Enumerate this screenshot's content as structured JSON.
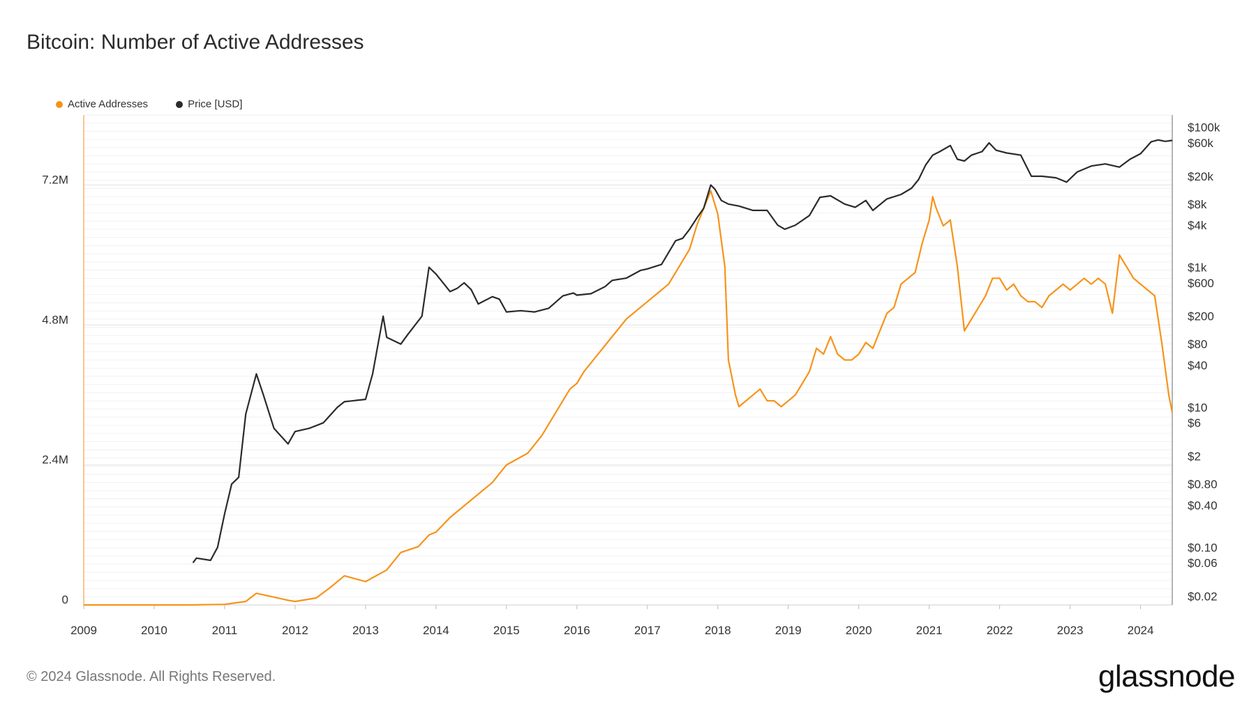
{
  "title": "Bitcoin: Number of Active Addresses",
  "legend": [
    {
      "label": "Active Addresses",
      "color": "#f7931a"
    },
    {
      "label": "Price [USD]",
      "color": "#2b2b2b"
    }
  ],
  "footer": "© 2024 Glassnode. All Rights Reserved.",
  "logo": "glassnode",
  "chart_data": {
    "type": "line",
    "title": "Bitcoin: Number of Active Addresses",
    "x_ticks": [
      "2009",
      "2010",
      "2011",
      "2012",
      "2013",
      "2014",
      "2015",
      "2016",
      "2017",
      "2018",
      "2019",
      "2020",
      "2021",
      "2022",
      "2023",
      "2024"
    ],
    "x_range": [
      2009.0,
      2024.45
    ],
    "left_axis": {
      "ticks": [
        {
          "v": 0,
          "label": "0"
        },
        {
          "v": 2400000,
          "label": "2.4M"
        },
        {
          "v": 4800000,
          "label": "4.8M"
        },
        {
          "v": 7200000,
          "label": "7.2M"
        }
      ],
      "ylim": [
        0,
        8400000
      ]
    },
    "right_axis": {
      "scale": "log",
      "ylim": [
        0.015,
        150000
      ],
      "ticks": [
        {
          "v": 0.02,
          "label": "$0.02"
        },
        {
          "v": 0.06,
          "label": "$0.06"
        },
        {
          "v": 0.1,
          "label": "$0.10"
        },
        {
          "v": 0.4,
          "label": "$0.40"
        },
        {
          "v": 0.8,
          "label": "$0.80"
        },
        {
          "v": 2,
          "label": "$2"
        },
        {
          "v": 6,
          "label": "$6"
        },
        {
          "v": 10,
          "label": "$10"
        },
        {
          "v": 40,
          "label": "$40"
        },
        {
          "v": 80,
          "label": "$80"
        },
        {
          "v": 200,
          "label": "$200"
        },
        {
          "v": 600,
          "label": "$600"
        },
        {
          "v": 1000,
          "label": "$1k"
        },
        {
          "v": 4000,
          "label": "$4k"
        },
        {
          "v": 8000,
          "label": "$8k"
        },
        {
          "v": 20000,
          "label": "$20k"
        },
        {
          "v": 60000,
          "label": "$60k"
        },
        {
          "v": 100000,
          "label": "$100k"
        }
      ]
    },
    "grid": true,
    "legend_position": "top-left",
    "series": [
      {
        "name": "Active Addresses",
        "axis": "left",
        "color": "#f7931a",
        "x": [
          2009.0,
          2010.5,
          2011.0,
          2011.3,
          2011.45,
          2011.6,
          2011.9,
          2012.0,
          2012.3,
          2012.5,
          2012.7,
          2013.0,
          2013.3,
          2013.5,
          2013.75,
          2013.9,
          2014.0,
          2014.2,
          2014.5,
          2014.8,
          2015.0,
          2015.3,
          2015.5,
          2015.7,
          2015.9,
          2016.0,
          2016.1,
          2016.3,
          2016.5,
          2016.7,
          2016.9,
          2017.0,
          2017.1,
          2017.2,
          2017.3,
          2017.4,
          2017.5,
          2017.6,
          2017.7,
          2017.8,
          2017.9,
          2017.95,
          2018.0,
          2018.1,
          2018.15,
          2018.25,
          2018.3,
          2018.4,
          2018.5,
          2018.6,
          2018.7,
          2018.8,
          2018.9,
          2019.0,
          2019.1,
          2019.2,
          2019.3,
          2019.4,
          2019.5,
          2019.6,
          2019.7,
          2019.8,
          2019.9,
          2020.0,
          2020.1,
          2020.2,
          2020.3,
          2020.4,
          2020.5,
          2020.6,
          2020.7,
          2020.8,
          2020.9,
          2021.0,
          2021.05,
          2021.1,
          2021.2,
          2021.3,
          2021.4,
          2021.5,
          2021.6,
          2021.7,
          2021.8,
          2021.9,
          2022.0,
          2022.1,
          2022.2,
          2022.3,
          2022.4,
          2022.5,
          2022.6,
          2022.7,
          2022.8,
          2022.9,
          2023.0,
          2023.1,
          2023.2,
          2023.3,
          2023.4,
          2023.5,
          2023.6,
          2023.7,
          2023.8,
          2023.9,
          2024.0,
          2024.1,
          2024.2,
          2024.3,
          2024.4,
          2024.45
        ],
        "values": [
          0,
          0,
          10000,
          60000,
          200000,
          160000,
          80000,
          60000,
          120000,
          300000,
          500000,
          400000,
          600000,
          900000,
          1000000,
          1200000,
          1250000,
          1500000,
          1800000,
          2100000,
          2400000,
          2600000,
          2900000,
          3300000,
          3700000,
          3800000,
          4000000,
          4300000,
          4600000,
          4900000,
          5100000,
          5200000,
          5300000,
          5400000,
          5500000,
          5700000,
          5900000,
          6100000,
          6500000,
          6800000,
          7100000,
          6900000,
          6700000,
          5800000,
          4200000,
          3600000,
          3400000,
          3500000,
          3600000,
          3700000,
          3500000,
          3500000,
          3400000,
          3500000,
          3600000,
          3800000,
          4000000,
          4400000,
          4300000,
          4600000,
          4300000,
          4200000,
          4200000,
          4300000,
          4500000,
          4400000,
          4700000,
          5000000,
          5100000,
          5500000,
          5600000,
          5700000,
          6200000,
          6600000,
          7000000,
          6800000,
          6500000,
          6600000,
          5800000,
          4700000,
          4900000,
          5100000,
          5300000,
          5600000,
          5600000,
          5400000,
          5500000,
          5300000,
          5200000,
          5200000,
          5100000,
          5300000,
          5400000,
          5500000,
          5400000,
          5500000,
          5600000,
          5500000,
          5600000,
          5500000,
          5000000,
          6000000,
          5800000,
          5600000,
          5500000,
          5400000,
          5300000,
          4500000,
          3600000,
          3300000
        ]
      },
      {
        "name": "Price [USD]",
        "axis": "right",
        "color": "#2b2b2b",
        "x": [
          2010.55,
          2010.6,
          2010.8,
          2010.9,
          2011.0,
          2011.1,
          2011.2,
          2011.3,
          2011.45,
          2011.55,
          2011.7,
          2011.9,
          2012.0,
          2012.2,
          2012.4,
          2012.6,
          2012.7,
          2013.0,
          2013.1,
          2013.25,
          2013.3,
          2013.5,
          2013.6,
          2013.8,
          2013.9,
          2014.0,
          2014.1,
          2014.2,
          2014.3,
          2014.4,
          2014.5,
          2014.6,
          2014.8,
          2014.9,
          2015.0,
          2015.2,
          2015.4,
          2015.6,
          2015.8,
          2015.95,
          2016.0,
          2016.2,
          2016.4,
          2016.5,
          2016.7,
          2016.9,
          2017.0,
          2017.2,
          2017.4,
          2017.5,
          2017.6,
          2017.7,
          2017.8,
          2017.9,
          2017.96,
          2018.05,
          2018.15,
          2018.3,
          2018.5,
          2018.7,
          2018.85,
          2018.95,
          2019.1,
          2019.3,
          2019.45,
          2019.6,
          2019.8,
          2019.95,
          2020.1,
          2020.2,
          2020.4,
          2020.6,
          2020.75,
          2020.85,
          2020.95,
          2021.05,
          2021.15,
          2021.3,
          2021.4,
          2021.5,
          2021.6,
          2021.75,
          2021.85,
          2021.95,
          2022.1,
          2022.3,
          2022.45,
          2022.6,
          2022.8,
          2022.95,
          2023.1,
          2023.3,
          2023.5,
          2023.7,
          2023.85,
          2024.0,
          2024.15,
          2024.25,
          2024.35,
          2024.45
        ],
        "values": [
          0.06,
          0.07,
          0.065,
          0.1,
          0.3,
          0.8,
          1.0,
          8,
          30,
          15,
          5,
          3,
          4.5,
          5,
          6,
          10,
          12,
          13,
          30,
          200,
          100,
          80,
          110,
          200,
          1000,
          800,
          600,
          450,
          500,
          600,
          480,
          300,
          380,
          350,
          230,
          240,
          230,
          260,
          390,
          430,
          400,
          420,
          530,
          650,
          700,
          900,
          950,
          1100,
          2400,
          2600,
          3500,
          5000,
          7000,
          15000,
          13000,
          9000,
          8000,
          7500,
          6500,
          6500,
          4000,
          3500,
          4000,
          5500,
          10000,
          10500,
          8000,
          7200,
          9000,
          6500,
          9500,
          11000,
          13500,
          18000,
          29000,
          40000,
          45000,
          55000,
          35000,
          33000,
          40000,
          45000,
          60000,
          47000,
          43000,
          40000,
          20000,
          20000,
          19000,
          16500,
          23000,
          28000,
          30000,
          27000,
          35000,
          42000,
          62000,
          66000,
          63000,
          65000
        ]
      }
    ]
  }
}
